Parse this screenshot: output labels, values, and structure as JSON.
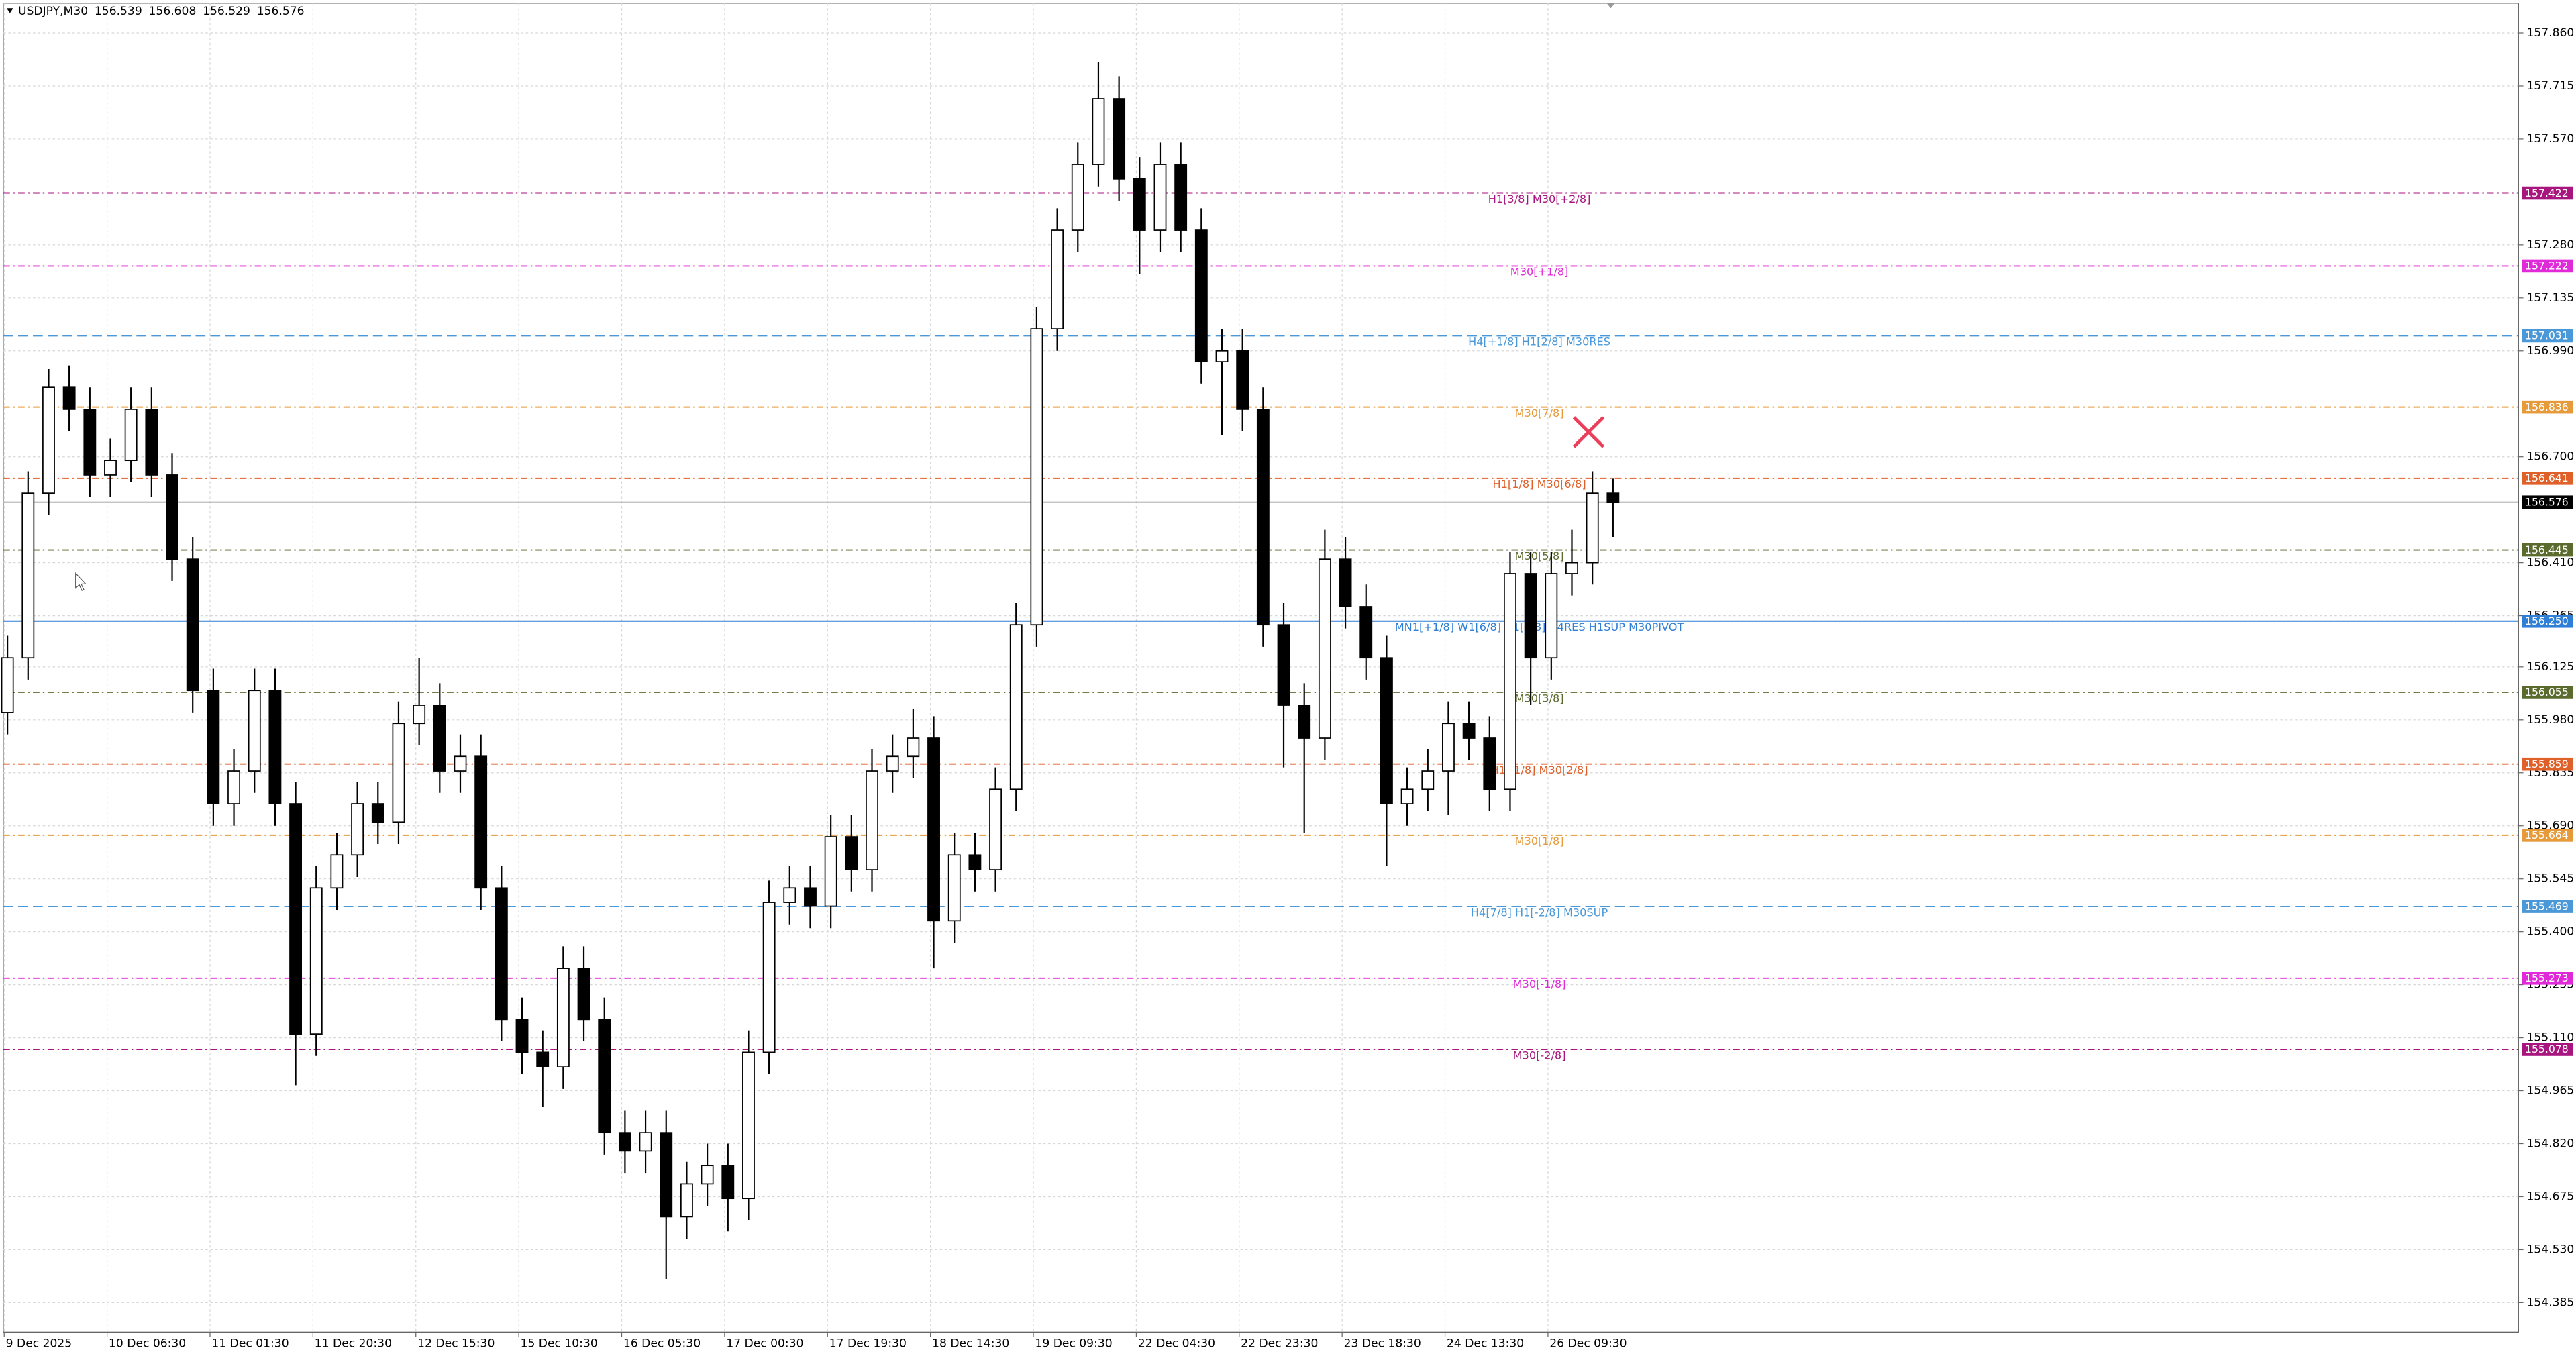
{
  "chart_data": {
    "type": "candlestick",
    "title": "USDJPY,M30",
    "quote": [
      156.539,
      156.608,
      156.529,
      156.576
    ],
    "categories": [
      "9 Dec 2025",
      null,
      null,
      null,
      null,
      "10 Dec 06:30",
      null,
      null,
      null,
      null,
      "11 Dec 01:30",
      null,
      null,
      null,
      null,
      "11 Dec 20:30",
      null,
      null,
      null,
      null,
      "12 Dec 15:30",
      null,
      null,
      null,
      null,
      "15 Dec 10:30",
      null,
      null,
      null,
      null,
      "16 Dec 05:30",
      null,
      null,
      null,
      null,
      "17 Dec 00:30",
      null,
      null,
      null,
      null,
      "17 Dec 19:30",
      null,
      null,
      null,
      null,
      "18 Dec 14:30",
      null,
      null,
      null,
      null,
      "19 Dec 09:30",
      null,
      null,
      null,
      null,
      "22 Dec 04:30",
      null,
      null,
      null,
      null,
      "22 Dec 23:30",
      null,
      null,
      null,
      null,
      "23 Dec 18:30",
      null,
      null,
      null,
      null,
      "24 Dec 13:30",
      null,
      null,
      null,
      null,
      "26 Dec 09:30",
      null,
      null,
      null
    ],
    "open": [
      156.0,
      156.15,
      156.6,
      156.89,
      156.83,
      156.65,
      156.69,
      156.83,
      156.65,
      156.42,
      156.06,
      155.75,
      155.84,
      156.06,
      155.75,
      155.12,
      155.52,
      155.61,
      155.75,
      155.7,
      155.97,
      156.02,
      155.84,
      155.88,
      155.52,
      155.16,
      155.07,
      155.03,
      155.3,
      155.16,
      154.85,
      154.8,
      154.85,
      154.62,
      154.71,
      154.76,
      154.67,
      155.07,
      155.48,
      155.52,
      155.47,
      155.66,
      155.57,
      155.84,
      155.88,
      155.93,
      155.43,
      155.61,
      155.57,
      155.79,
      156.24,
      157.05,
      157.32,
      157.5,
      157.68,
      157.46,
      157.32,
      157.5,
      157.32,
      156.96,
      156.99,
      156.83,
      156.24,
      156.02,
      155.93,
      156.42,
      156.29,
      156.15,
      155.75,
      155.79,
      155.84,
      155.97,
      155.93,
      155.79,
      156.38,
      156.15,
      156.38,
      156.41,
      156.6
    ],
    "high": [
      156.21,
      156.66,
      156.94,
      156.95,
      156.89,
      156.75,
      156.89,
      156.89,
      156.71,
      156.48,
      156.12,
      155.9,
      156.12,
      156.12,
      155.81,
      155.58,
      155.67,
      155.81,
      155.81,
      156.03,
      156.15,
      156.08,
      155.94,
      155.94,
      155.58,
      155.22,
      155.13,
      155.36,
      155.36,
      155.22,
      154.91,
      154.91,
      154.91,
      154.77,
      154.82,
      154.82,
      155.13,
      155.54,
      155.58,
      155.58,
      155.72,
      155.72,
      155.9,
      155.94,
      156.01,
      155.99,
      155.67,
      155.67,
      155.85,
      156.3,
      157.11,
      157.38,
      157.56,
      157.78,
      157.74,
      157.52,
      157.56,
      157.56,
      157.38,
      157.05,
      157.05,
      156.89,
      156.3,
      156.08,
      156.5,
      156.48,
      156.35,
      156.21,
      155.85,
      155.9,
      156.03,
      156.03,
      155.99,
      156.44,
      156.44,
      156.44,
      156.5,
      156.66,
      156.64
    ],
    "low": [
      155.94,
      156.09,
      156.54,
      156.77,
      156.59,
      156.59,
      156.63,
      156.59,
      156.36,
      156.0,
      155.69,
      155.69,
      155.78,
      155.69,
      154.98,
      155.06,
      155.46,
      155.55,
      155.64,
      155.64,
      155.91,
      155.78,
      155.78,
      155.46,
      155.1,
      155.01,
      154.92,
      154.97,
      155.1,
      154.79,
      154.74,
      154.74,
      154.45,
      154.56,
      154.65,
      154.58,
      154.61,
      155.01,
      155.42,
      155.41,
      155.41,
      155.51,
      155.51,
      155.78,
      155.82,
      155.3,
      155.37,
      155.51,
      155.51,
      155.73,
      156.18,
      156.99,
      157.26,
      157.44,
      157.4,
      157.2,
      157.26,
      157.26,
      156.9,
      156.76,
      156.77,
      156.18,
      155.85,
      155.67,
      155.87,
      156.23,
      156.09,
      155.58,
      155.69,
      155.73,
      155.72,
      155.87,
      155.73,
      155.73,
      156.02,
      156.09,
      156.32,
      156.35,
      156.48
    ],
    "close": [
      156.15,
      156.6,
      156.89,
      156.83,
      156.65,
      156.69,
      156.83,
      156.65,
      156.42,
      156.06,
      155.75,
      155.84,
      156.06,
      155.75,
      155.12,
      155.52,
      155.61,
      155.75,
      155.7,
      155.97,
      156.02,
      155.84,
      155.88,
      155.52,
      155.16,
      155.07,
      155.03,
      155.3,
      155.16,
      154.85,
      154.8,
      154.85,
      154.62,
      154.71,
      154.76,
      154.67,
      155.07,
      155.48,
      155.52,
      155.47,
      155.66,
      155.57,
      155.84,
      155.88,
      155.93,
      155.43,
      155.61,
      155.57,
      155.79,
      156.24,
      157.05,
      157.32,
      157.5,
      157.68,
      157.46,
      157.32,
      157.5,
      157.32,
      156.96,
      156.99,
      156.83,
      156.24,
      156.02,
      155.93,
      156.42,
      156.29,
      156.15,
      155.75,
      155.79,
      155.84,
      155.97,
      155.93,
      155.79,
      156.38,
      156.15,
      156.38,
      156.41,
      156.6,
      156.576
    ],
    "ylim": [
      154.304,
      157.941
    ],
    "yticks": [
      {
        "value": 157.86,
        "label": "157.860"
      },
      157.715,
      {
        "value": 157.57,
        "label": "157.570"
      },
      {
        "value": 157.28,
        "label": "157.280"
      },
      157.135,
      {
        "value": 156.99,
        "label": "156.990"
      },
      {
        "value": 156.7,
        "label": "156.700"
      },
      {
        "value": 156.41,
        "label": "156.410"
      },
      156.265,
      156.125,
      {
        "value": 155.98,
        "label": "155.980"
      },
      155.835,
      {
        "value": 155.69,
        "label": "155.690"
      },
      155.545,
      {
        "value": 155.4,
        "label": "155.400"
      },
      155.255,
      {
        "value": 155.11,
        "label": "155.110"
      },
      154.965,
      {
        "value": 154.82,
        "label": "154.820"
      },
      154.675,
      {
        "value": 154.53,
        "label": "154.530"
      },
      154.385
    ],
    "grid": true,
    "bull_color": "#ffffff",
    "bear_color": "#000000",
    "current_price": 156.576,
    "levels": [
      {
        "name": "H1[3/8] M30[+2/8]",
        "value": 157.422,
        "color": "#a8157f",
        "style": "dashdot"
      },
      {
        "name": "M30[+1/8]",
        "value": 157.222,
        "color": "#e02ad9",
        "style": "dashdot"
      },
      {
        "name": "H4[+1/8] H1[2/8] M30RES",
        "value": 157.031,
        "color": "#4a98d8",
        "style": "dashed"
      },
      {
        "name": "M30[7/8]",
        "value": 156.836,
        "color": "#e69a3a",
        "style": "dashdot"
      },
      {
        "name": "H1[1/8] M30[6/8]",
        "value": 156.641,
        "color": "#e0602a",
        "style": "dashdot"
      },
      {
        "name": "M30[5/8]",
        "value": 156.445,
        "color": "#5b6b2e",
        "style": "dashdot"
      },
      {
        "name": "MN1[+1/8] W1[6/8] D1[4/8] H4RES H1SUP M30PIVOT",
        "value": 156.25,
        "value_label": "156.250",
        "color": "#2f7fd6",
        "style": "solid"
      },
      {
        "name": "M30[3/8]",
        "value": 156.055,
        "color": "#5b6b2e",
        "style": "dashdot"
      },
      {
        "name": "H1[-1/8] M30[2/8]",
        "value": 155.859,
        "color": "#e0602a",
        "style": "dashdot"
      },
      {
        "name": "M30[1/8]",
        "value": 155.664,
        "color": "#e69a3a",
        "style": "dashdot"
      },
      {
        "name": "H4[7/8] H1[-2/8] M30SUP",
        "value": 155.469,
        "color": "#4a98d8",
        "style": "dashed"
      },
      {
        "name": "M30[-1/8]",
        "value": 155.273,
        "color": "#e02ad9",
        "style": "dashdot"
      },
      {
        "name": "M30[-2/8]",
        "value": 155.078,
        "color": "#a8157f",
        "style": "dashdot"
      }
    ]
  }
}
